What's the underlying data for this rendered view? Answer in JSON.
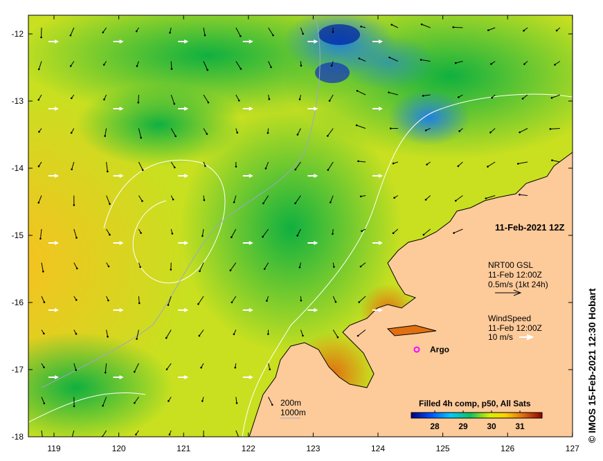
{
  "map": {
    "date_title": "11-Feb-2021 12Z",
    "x_ticks": [
      "119",
      "120",
      "121",
      "122",
      "123",
      "124",
      "125",
      "126",
      "127"
    ],
    "y_ticks": [
      "-12",
      "-13",
      "-14",
      "-15",
      "-16",
      "-17",
      "-18"
    ],
    "current_legend": {
      "line1": "NRT00 GSL",
      "line2": "11-Feb 12:00Z",
      "line3": "0.5m/s (1kt 24h)"
    },
    "wind_legend": {
      "line1": "WindSpeed",
      "line2": "11-Feb 12:00Z",
      "line3": "10 m/s"
    },
    "argo_label": "Argo",
    "contours": {
      "c200": "200m",
      "c1000": "1000m"
    },
    "colorbar": {
      "title": "Filled 4h comp, p50, All Sats",
      "labels": [
        "28",
        "29",
        "30",
        "31"
      ]
    },
    "credit": "©  IMOS 15-Feb-2021 12:30 Hobart",
    "colors": {
      "land": "#fdca9a",
      "argo": "#ff00ff",
      "contour200": "#ffffff",
      "contour1000": "#9aa6c8"
    }
  }
}
